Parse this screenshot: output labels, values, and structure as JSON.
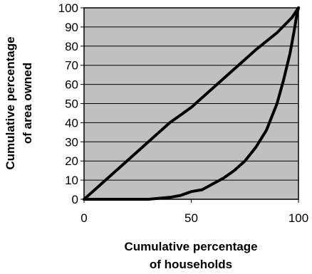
{
  "chart_data": {
    "type": "line",
    "title": "",
    "xlabel_lines": [
      "Cumulative percentage",
      "of households"
    ],
    "ylabel_lines": [
      "Cumulative percentage",
      "of area owned"
    ],
    "xlim": [
      0,
      100
    ],
    "ylim": [
      0,
      100
    ],
    "xticks": [
      0,
      50,
      100
    ],
    "yticks": [
      0,
      10,
      20,
      30,
      40,
      50,
      60,
      70,
      80,
      90,
      100
    ],
    "grid": "horizontal",
    "legend": "none",
    "colors": {
      "plot_background": "#c0c0c0",
      "gridline": "#000000",
      "series": "#000000"
    },
    "series": [
      {
        "x": [
          0,
          5,
          10,
          20,
          30,
          40,
          50,
          60,
          70,
          80,
          90,
          97,
          100
        ],
        "y": [
          0,
          5,
          10,
          20,
          30,
          40,
          48,
          58,
          68,
          78,
          87,
          95,
          100
        ]
      },
      {
        "x": [
          0,
          30,
          40,
          45,
          50,
          55,
          60,
          65,
          70,
          75,
          80,
          85,
          90,
          93,
          96,
          98,
          99,
          100
        ],
        "y": [
          0,
          0,
          1,
          2,
          4,
          5,
          8,
          11,
          15,
          20,
          27,
          36,
          50,
          62,
          76,
          88,
          95,
          100
        ]
      }
    ]
  }
}
